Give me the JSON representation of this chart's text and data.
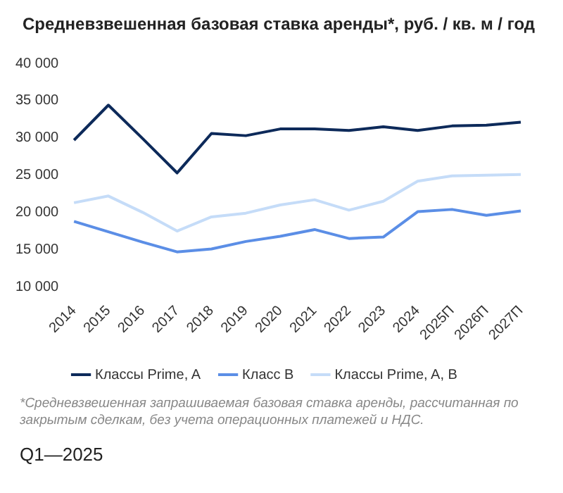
{
  "chart_data": {
    "type": "line",
    "title": "Средневзвешенная базовая ставка аренды*, руб. / кв. м / год",
    "categories": [
      "2014",
      "2015",
      "2016",
      "2017",
      "2018",
      "2019",
      "2020",
      "2021",
      "2022",
      "2023",
      "2024",
      "2025П",
      "2026П",
      "2027П"
    ],
    "series": [
      {
        "name": "Классы Prime, A",
        "color": "#0d2a5a",
        "values": [
          29700,
          34400,
          29900,
          25300,
          30600,
          30300,
          31200,
          31200,
          31000,
          31500,
          31000,
          31600,
          31700,
          32100
        ]
      },
      {
        "name": "Класс B",
        "color": "#5b8ee6",
        "values": [
          18800,
          17400,
          16000,
          14700,
          15100,
          16100,
          16800,
          17700,
          16500,
          16700,
          20100,
          20400,
          19600,
          20200
        ]
      },
      {
        "name": "Классы Prime, A, B",
        "color": "#c5dcf8",
        "values": [
          21300,
          22200,
          20000,
          17500,
          19400,
          19900,
          21000,
          21700,
          20300,
          21500,
          24200,
          24900,
          25000,
          25100
        ]
      }
    ],
    "ylim": [
      10000,
      40000
    ],
    "yticks": [
      {
        "value": 10000,
        "label": "10 000"
      },
      {
        "value": 15000,
        "label": "15 000"
      },
      {
        "value": 20000,
        "label": "20 000"
      },
      {
        "value": 25000,
        "label": "25 000"
      },
      {
        "value": 30000,
        "label": "30 000"
      },
      {
        "value": 35000,
        "label": "35 000"
      },
      {
        "value": 40000,
        "label": "40 000"
      }
    ],
    "grid": false,
    "legend": "bottom",
    "marker": "none",
    "line_style": "solid",
    "annotations": [
      "*Средневзвешенная запрашиваемая базовая ставка аренды, рассчитанная по закрытым сделкам, без учета операционных платежей и НДС.",
      "Q1—2025"
    ]
  }
}
